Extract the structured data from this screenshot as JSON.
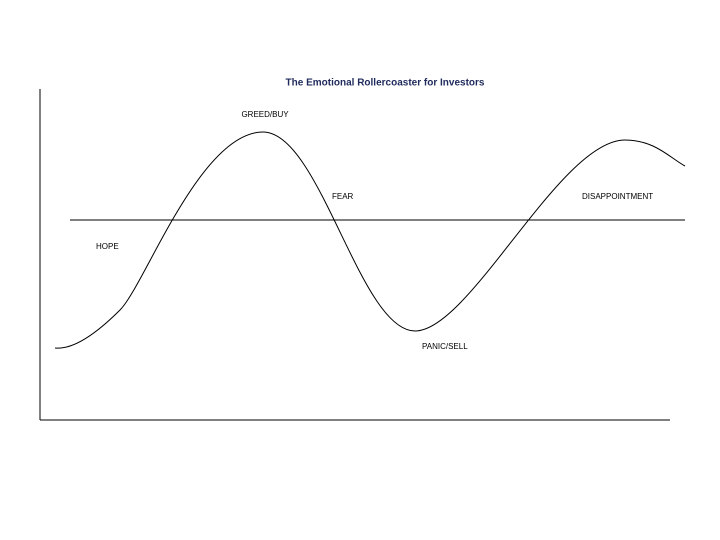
{
  "title": "The Emotional Rollercoaster for Investors",
  "labels": [
    {
      "label": "GREED/BUY"
    },
    {
      "label": "FEAR"
    },
    {
      "label": "HOPE"
    },
    {
      "label": "PANIC/SELL"
    },
    {
      "label": "DISAPPOINTMENT"
    }
  ]
}
